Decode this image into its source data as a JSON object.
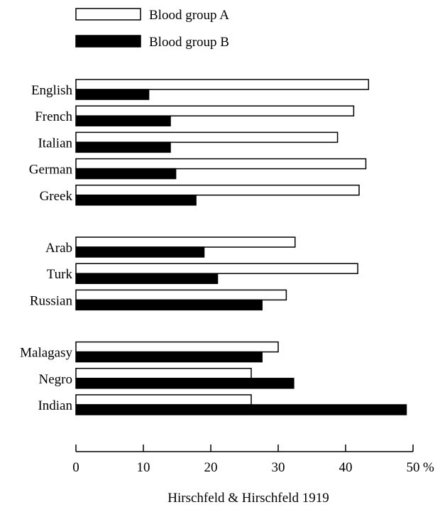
{
  "chart_data": {
    "type": "bar",
    "orientation": "horizontal",
    "categories": [
      "English",
      "French",
      "Italian",
      "German",
      "Greek",
      "Arab",
      "Turk",
      "Russian",
      "Malagasy",
      "Negro",
      "Indian"
    ],
    "groups": [
      [
        "English",
        "French",
        "Italian",
        "German",
        "Greek"
      ],
      [
        "Arab",
        "Turk",
        "Russian"
      ],
      [
        "Malagasy",
        "Negro",
        "Indian"
      ]
    ],
    "series": [
      {
        "name": "Blood group A",
        "color": "#ffffff",
        "values": [
          43.4,
          41.2,
          38.8,
          43.0,
          42.0,
          32.5,
          41.8,
          31.2,
          30.0,
          26.0,
          26.0
        ]
      },
      {
        "name": "Blood group B",
        "color": "#000000",
        "values": [
          10.8,
          14.0,
          14.0,
          14.8,
          17.8,
          19.0,
          21.0,
          27.6,
          27.6,
          32.3,
          49.0
        ]
      }
    ],
    "xlim": [
      0,
      50
    ],
    "xticks": [
      "0",
      "10",
      "20",
      "30",
      "40",
      "50"
    ],
    "x_unit": "%",
    "legend_position": "top-left",
    "caption": "Hirschfeld & Hirschfeld 1919",
    "grid": false
  }
}
